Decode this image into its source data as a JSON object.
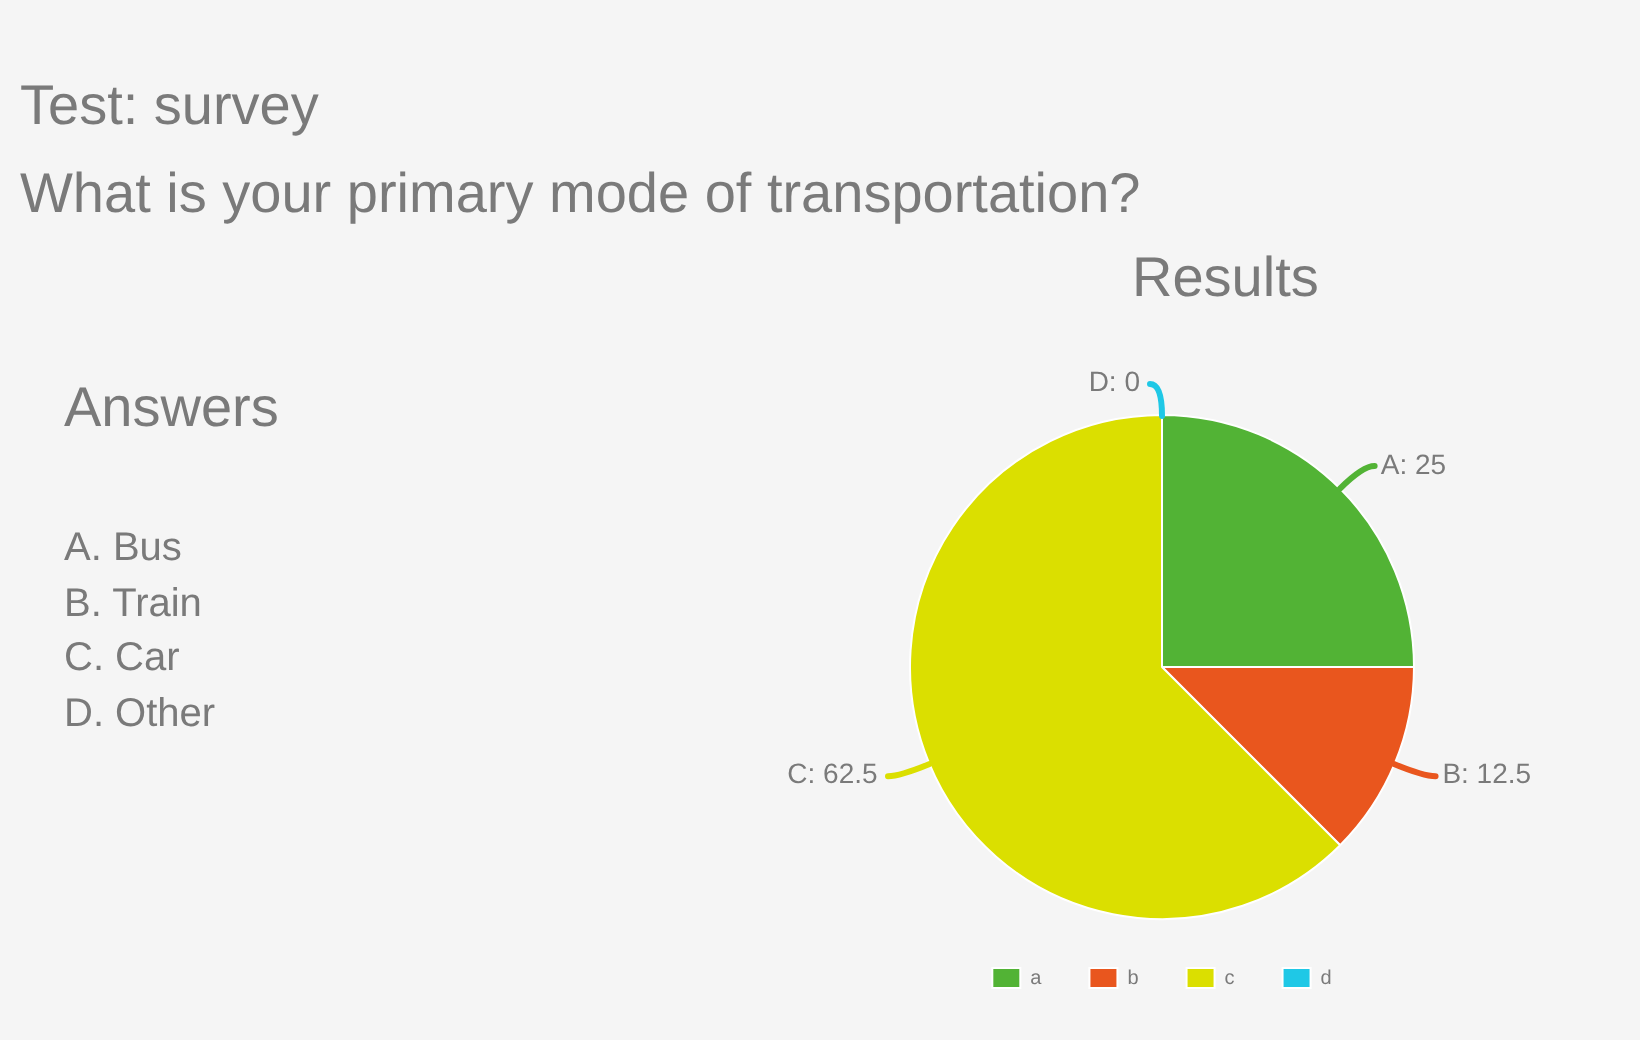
{
  "chart_data": {
    "type": "pie",
    "title": "Test: survey",
    "subtitle": "What is your primary mode of transportation?",
    "annotations": [
      "Results",
      "Answers",
      "A. Bus",
      "B. Train",
      "C. Car",
      "D. Other"
    ],
    "categories": [
      "a",
      "b",
      "c",
      "d"
    ],
    "values": [
      25,
      12.5,
      62.5,
      0
    ],
    "colors": [
      "#52b335",
      "#e9561e",
      "#dbdf00",
      "#1fc8e6"
    ],
    "value_labels": [
      "A: 25",
      "B: 12.5",
      "C: 62.5",
      "D: 0"
    ],
    "legend": "bottom"
  }
}
